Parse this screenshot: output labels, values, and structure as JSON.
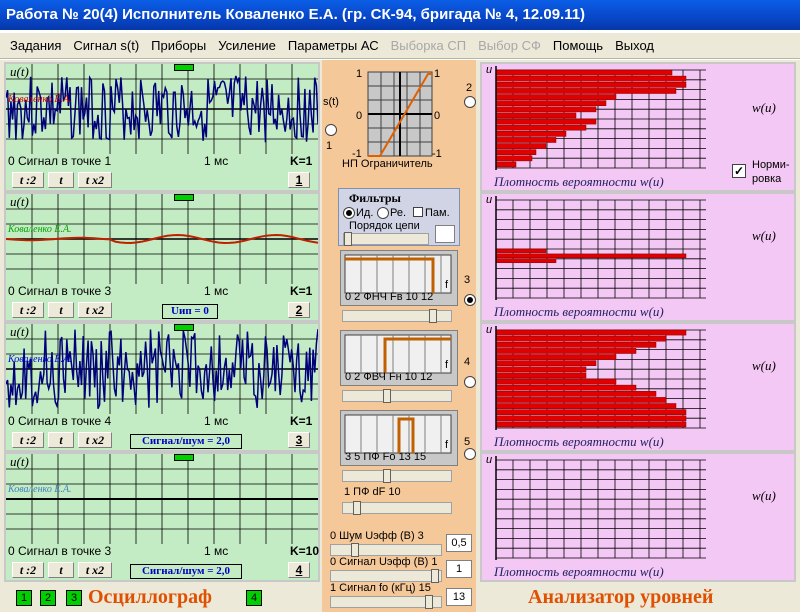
{
  "window": {
    "title": "Работа № 20(4)  Исполнитель Коваленко Е.А. (гр. СК-94, бригада № 4, 12.09.11)"
  },
  "menu": [
    {
      "label": "Задания",
      "enabled": true
    },
    {
      "label": "Сигнал s(t)",
      "enabled": true
    },
    {
      "label": "Приборы",
      "enabled": true
    },
    {
      "label": "Усиление",
      "enabled": true
    },
    {
      "label": "Параметры  АС",
      "enabled": true
    },
    {
      "label": "Выборка СП",
      "enabled": false
    },
    {
      "label": "Выбор СФ",
      "enabled": false
    },
    {
      "label": "Помощь",
      "enabled": true
    },
    {
      "label": "Выход",
      "enabled": true
    }
  ],
  "oscillographs": [
    {
      "ylabel": "u(t)",
      "signature": "Коваленко Е.А.",
      "caption": "0    Сигнал в точке 1",
      "time": "1 мс",
      "k": "K=1",
      "btn_div": "t :2",
      "btn_t": "t",
      "btn_mul": "t x2",
      "num": "1",
      "info": "",
      "amp": 1.0,
      "sigcolor": "#d00000"
    },
    {
      "ylabel": "u(t)",
      "signature": "Коваленко Е.А.",
      "caption": "0    Сигнал в точке 3",
      "time": "1 мс",
      "k": "K=1",
      "btn_div": "t :2",
      "btn_t": "t",
      "btn_mul": "t x2",
      "num": "2",
      "info": "Uип = 0",
      "amp": 0.1,
      "sigcolor": "#00a000"
    },
    {
      "ylabel": "u(t)",
      "signature": "Коваленко Е.А.",
      "caption": "0    Сигнал в точке 4",
      "time": "1 мс",
      "k": "K=1",
      "btn_div": "t :2",
      "btn_t": "t",
      "btn_mul": "t x2",
      "num": "3",
      "info": "Сигнал/шум = 2,0",
      "amp": 1.2,
      "sigcolor": "#0000d0"
    },
    {
      "ylabel": "u(t)",
      "signature": "Коваленко Е.А.",
      "caption": "0    Сигнал в точке 3",
      "time": "1 мс",
      "k": "K=10",
      "btn_div": "t :2",
      "btn_t": "t",
      "btn_mul": "t x2",
      "num": "4",
      "info": "Сигнал/шум = 2,0",
      "amp": 0,
      "sigcolor": "#4080c0"
    }
  ],
  "center": {
    "st_label": "s(t)",
    "one_top": "1",
    "one_left": "1",
    "two": "2",
    "three": "3",
    "four": "4",
    "five": "5",
    "limiter": "НП Ограничитель",
    "lim_ticks": {
      "top": "1",
      "bottom": "-1",
      "right": "1",
      "left": "-1",
      "mid": "0",
      "mid_right": "0"
    },
    "filters_title": "Фильтры",
    "f_id": "Ид.",
    "f_re": "Ре.",
    "f_pam": "Пам.",
    "order": "Порядок цепи",
    "lpf": "0  2  ФНЧ Fв 10 12",
    "hpf": "0  2  ФВЧ Fн 10 12",
    "bpf": "3   5   ПФ Fо  13 15",
    "bpf_df": "1        ПФ dF        10",
    "noise": "0  Шум Uэфф (В)  3",
    "signal": "0 Сигнал Uэфф (В) 1",
    "freq": "1   Сигнал fo (кГц) 15",
    "noise_val": "0,5",
    "signal_val": "1",
    "freq_val": "13",
    "f_tag": "f"
  },
  "analyzer": {
    "u_label": "u",
    "w_label": "w(u)",
    "caption": "Плотность вероятности  w(u)",
    "normalize": "Норми-\nровка",
    "normalize_checked": true,
    "panels": [
      {
        "bars": [
          0.88,
          0.95,
          0.95,
          0.9,
          0.6,
          0.55,
          0.5,
          0.4,
          0.5,
          0.45,
          0.35,
          0.3,
          0.25,
          0.2,
          0.18,
          0.1
        ]
      },
      {
        "bars": [
          0,
          0,
          0,
          0,
          0,
          0,
          0,
          0,
          0,
          0,
          0.25,
          0.95,
          0.3,
          0,
          0,
          0,
          0,
          0,
          0,
          0
        ]
      },
      {
        "bars": [
          0.95,
          0.85,
          0.8,
          0.7,
          0.6,
          0.5,
          0.45,
          0.45,
          0.6,
          0.7,
          0.8,
          0.85,
          0.9,
          0.95,
          0.95,
          0.95
        ]
      },
      {
        "bars": []
      }
    ]
  },
  "footer": {
    "oscillograph": "Осциллограф",
    "analyzer": "Анализатор уровней",
    "channels": [
      "1",
      "2",
      "3",
      "4"
    ]
  },
  "colors": {
    "osc_bg": "#c4ecc4",
    "pdf_bg": "#f4c8f4",
    "bar": "#e00000",
    "trace": "#000080",
    "accent": "#e05000"
  }
}
